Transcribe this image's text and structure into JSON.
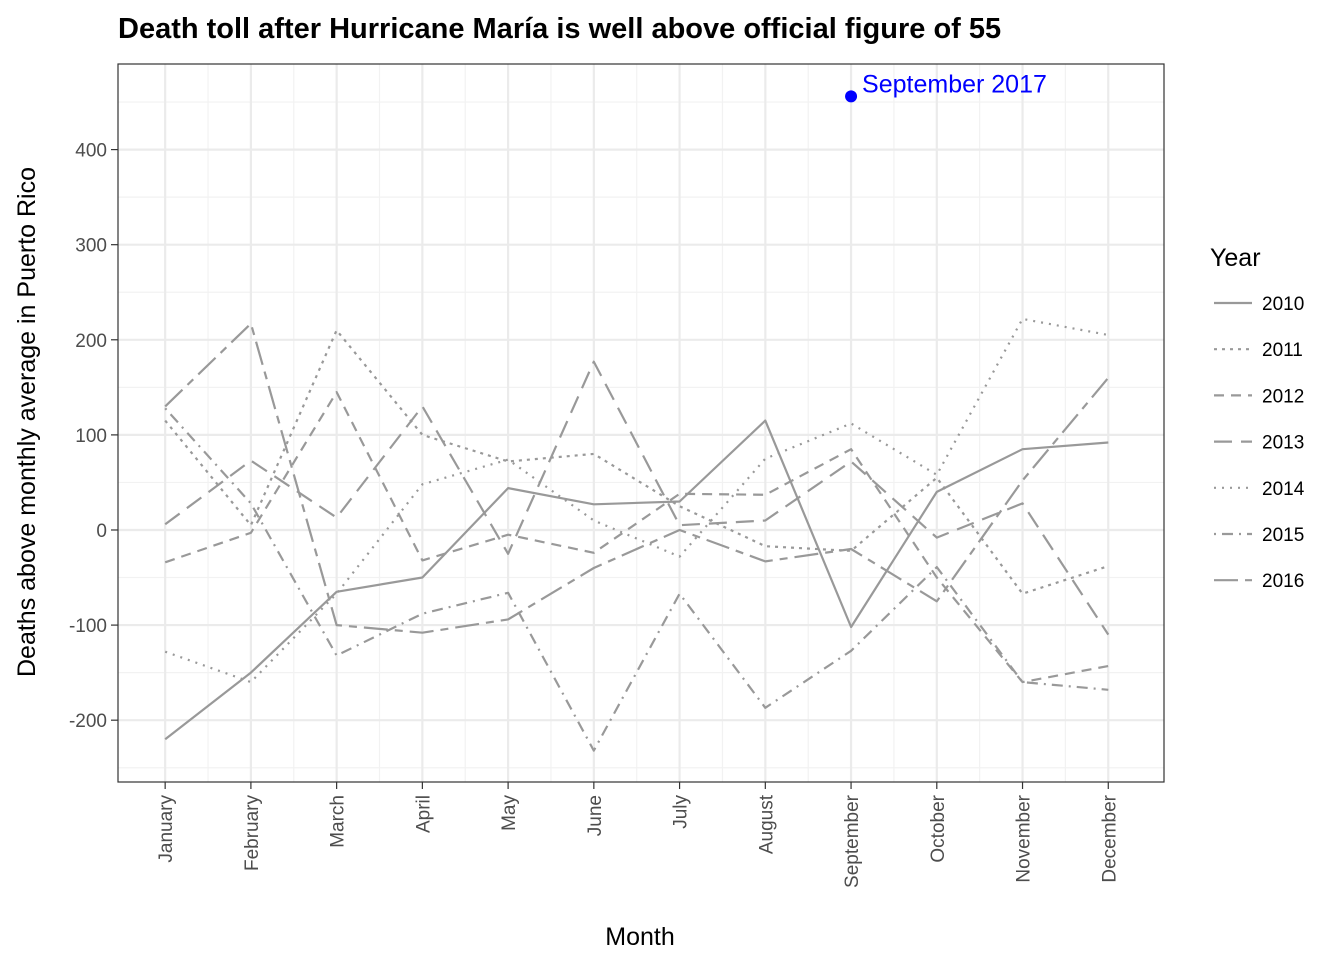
{
  "chart_data": {
    "type": "line",
    "title": "Death toll after Hurricane María is well above official figure of 55",
    "xlabel": "Month",
    "ylabel": "Deaths above monthly average in Puerto Rico",
    "categories": [
      "January",
      "February",
      "March",
      "April",
      "May",
      "June",
      "July",
      "August",
      "September",
      "October",
      "November",
      "December"
    ],
    "ylim": [
      -265,
      490
    ],
    "yticks": [
      -200,
      -100,
      0,
      100,
      200,
      300,
      400
    ],
    "ytick_labels": [
      "-200",
      "-100",
      "0",
      "100",
      "200",
      "300",
      "400"
    ],
    "grid": true,
    "legend": {
      "title": "Year",
      "placement": "right"
    },
    "series_color": "#999999",
    "series": [
      {
        "name": "2010",
        "dash": "solid",
        "values": [
          -220,
          -150,
          -65,
          -50,
          44,
          27,
          30,
          115,
          -102,
          40,
          85,
          92
        ]
      },
      {
        "name": "2011",
        "dash": "dot",
        "values": [
          115,
          5,
          210,
          100,
          72,
          80,
          25,
          -17,
          -22,
          55,
          -67,
          -38
        ]
      },
      {
        "name": "2012",
        "dash": "dash",
        "values": [
          -34,
          -3,
          145,
          -32,
          -5,
          -24,
          38,
          37,
          85,
          -50,
          -160,
          -143
        ]
      },
      {
        "name": "2013",
        "dash": "longdash",
        "values": [
          6,
          73,
          13,
          130,
          -25,
          177,
          5,
          10,
          72,
          -8,
          28,
          -110
        ]
      },
      {
        "name": "2014",
        "dash": "dotted",
        "values": [
          -128,
          -160,
          -67,
          48,
          74,
          10,
          -28,
          75,
          112,
          58,
          222,
          205
        ]
      },
      {
        "name": "2015",
        "dash": "dotdash",
        "values": [
          128,
          28,
          -132,
          -88,
          -66,
          -232,
          -67,
          -187,
          -127,
          -39,
          -160,
          -168
        ]
      },
      {
        "name": "2016",
        "dash": "twodash",
        "values": [
          130,
          217,
          -100,
          -108,
          -94,
          -40,
          0,
          -33,
          -20,
          -75,
          52,
          160
        ]
      }
    ],
    "highlight": {
      "label": "September 2017",
      "category": "September",
      "value": 456,
      "color": "#0000ff"
    }
  }
}
